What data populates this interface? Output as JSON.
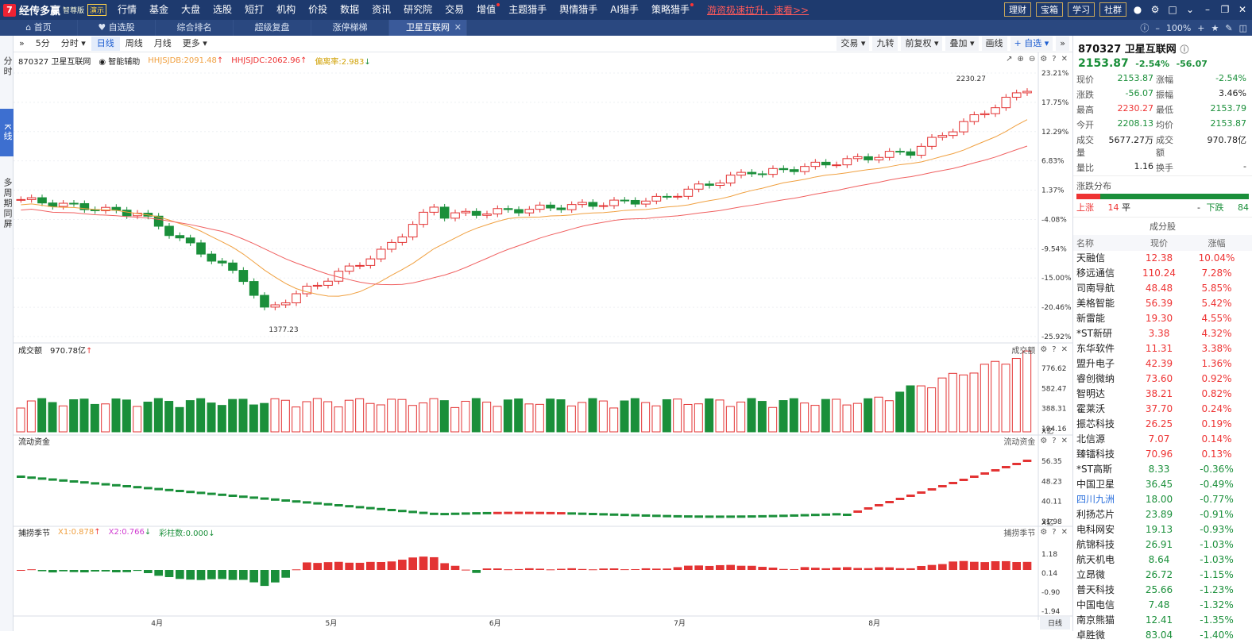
{
  "app": {
    "logo_mark": "7",
    "name": "经传多赢",
    "edition": "智尊版",
    "demo": "演示"
  },
  "menu": [
    {
      "label": "行情"
    },
    {
      "label": "基金"
    },
    {
      "label": "大盘"
    },
    {
      "label": "选股"
    },
    {
      "label": "短打"
    },
    {
      "label": "机构"
    },
    {
      "label": "价投"
    },
    {
      "label": "数据"
    },
    {
      "label": "资讯"
    },
    {
      "label": "研究院"
    },
    {
      "label": "交易"
    },
    {
      "label": "增值"
    },
    {
      "label": "主题猎手"
    },
    {
      "label": "舆情猎手"
    },
    {
      "label": "AI猎手"
    },
    {
      "label": "策略猎手"
    }
  ],
  "promo": "游资极速拉升，速看>>",
  "top_buttons": [
    "理财",
    "宝箱",
    "学习",
    "社群"
  ],
  "tabs": [
    {
      "label": "首页"
    },
    {
      "label": "自选股"
    },
    {
      "label": "综合排名"
    },
    {
      "label": "超级复盘"
    },
    {
      "label": "涨停梯梯"
    },
    {
      "label": "卫星互联网"
    }
  ],
  "tab_zoom": "100%",
  "left_nav": [
    "分时",
    "K线",
    "多周期同屏"
  ],
  "chart_toolbar": {
    "periods": [
      "5分",
      "分时",
      "日线",
      "周线",
      "月线",
      "更多"
    ],
    "right": [
      "交易",
      "九转",
      "前复权",
      "叠加",
      "画线",
      "自选"
    ]
  },
  "chart_legend": {
    "code_name": "870327 卫星互联网",
    "assist": "智能辅助",
    "hhjsjdb": "HHJSJDB:2091.48",
    "hhjsjdc": "HHJSJDC:2062.96",
    "deviation": "偏离率:2.983"
  },
  "price_axis": [
    "23.21%",
    "17.75%",
    "12.29%",
    "6.83%",
    "1.37%",
    "-4.08%",
    "-9.54%",
    "-15.00%",
    "-20.46%",
    "-25.92%"
  ],
  "high_label": "2230.27",
  "low_label": "1377.23",
  "volume": {
    "title": "成交额",
    "value": "970.78亿",
    "unit": "X亿",
    "axis": [
      "776.62",
      "582.47",
      "388.31",
      "194.16"
    ],
    "right_title": "成交额"
  },
  "flow": {
    "title": "流动资金",
    "unit": "X亿",
    "axis": [
      "56.35",
      "48.23",
      "40.11",
      "31.98"
    ],
    "right_title": "流动资金"
  },
  "season": {
    "title": "捕捞季节",
    "x1": "X1:0.878",
    "x2": "X2:0.766",
    "bars": "彩柱数:0.000",
    "axis": [
      "1.18",
      "0.14",
      "-0.90",
      "-1.94"
    ],
    "right_title": "捕捞季节"
  },
  "x_axis": [
    "4月",
    "5月",
    "6月",
    "7月",
    "8月"
  ],
  "period_tag": "日线",
  "quote": {
    "title": "870327 卫星互联网",
    "price": "2153.87",
    "chg_pct": "-2.54%",
    "chg": "-56.07",
    "rows": [
      {
        "k1": "现价",
        "v1": "2153.87",
        "c1": "g",
        "k2": "涨幅",
        "v2": "-2.54%",
        "c2": "g"
      },
      {
        "k1": "涨跌",
        "v1": "-56.07",
        "c1": "g",
        "k2": "振幅",
        "v2": "3.46%",
        "c2": "blk"
      },
      {
        "k1": "最高",
        "v1": "2230.27",
        "c1": "r",
        "k2": "最低",
        "v2": "2153.79",
        "c2": "g"
      },
      {
        "k1": "今开",
        "v1": "2208.13",
        "c1": "g",
        "k2": "均价",
        "v2": "2153.87",
        "c2": "g"
      },
      {
        "k1": "成交量",
        "v1": "5677.27万",
        "c1": "blk",
        "k2": "成交额",
        "v2": "970.78亿",
        "c2": "blk"
      },
      {
        "k1": "量比",
        "v1": "1.16",
        "c1": "blk",
        "k2": "换手",
        "v2": "-",
        "c2": "blk"
      }
    ]
  },
  "distribution": {
    "title": "涨跌分布",
    "up_label": "上涨",
    "up": "14",
    "flat_label": "平",
    "flat": "-",
    "down_label": "下跌",
    "down": "84"
  },
  "components": {
    "title": "成分股",
    "head": [
      "名称",
      "现价",
      "涨幅"
    ],
    "rows": [
      {
        "name": "天融信",
        "price": "12.38",
        "chg": "10.04%"
      },
      {
        "name": "移远通信",
        "price": "110.24",
        "chg": "7.28%"
      },
      {
        "name": "司南导航",
        "price": "48.48",
        "chg": "5.85%"
      },
      {
        "name": "美格智能",
        "price": "56.39",
        "chg": "5.42%"
      },
      {
        "name": "新雷能",
        "price": "19.30",
        "chg": "4.55%"
      },
      {
        "name": "*ST新研",
        "price": "3.38",
        "chg": "4.32%"
      },
      {
        "name": "东华软件",
        "price": "11.31",
        "chg": "3.38%"
      },
      {
        "name": "盟升电子",
        "price": "42.39",
        "chg": "1.36%"
      },
      {
        "name": "睿创微纳",
        "price": "73.60",
        "chg": "0.92%"
      },
      {
        "name": "智明达",
        "price": "38.21",
        "chg": "0.82%"
      },
      {
        "name": "霍莱沃",
        "price": "37.70",
        "chg": "0.24%"
      },
      {
        "name": "振芯科技",
        "price": "26.25",
        "chg": "0.19%"
      },
      {
        "name": "北信源",
        "price": "7.07",
        "chg": "0.14%"
      },
      {
        "name": "臻镭科技",
        "price": "70.96",
        "chg": "0.13%"
      },
      {
        "name": "*ST高斯",
        "price": "8.33",
        "chg": "-0.36%"
      },
      {
        "name": "中国卫星",
        "price": "36.45",
        "chg": "-0.49%"
      },
      {
        "name": "四川九洲",
        "price": "18.00",
        "chg": "-0.77%"
      },
      {
        "name": "利扬芯片",
        "price": "23.89",
        "chg": "-0.91%"
      },
      {
        "name": "电科网安",
        "price": "19.13",
        "chg": "-0.93%"
      },
      {
        "name": "航锦科技",
        "price": "26.91",
        "chg": "-1.03%"
      },
      {
        "name": "航天机电",
        "price": "8.64",
        "chg": "-1.03%"
      },
      {
        "name": "立昂微",
        "price": "26.72",
        "chg": "-1.15%"
      },
      {
        "name": "普天科技",
        "price": "25.66",
        "chg": "-1.23%"
      },
      {
        "name": "中国电信",
        "price": "7.48",
        "chg": "-1.32%"
      },
      {
        "name": "南京熊猫",
        "price": "12.41",
        "chg": "-1.35%"
      },
      {
        "name": "卓胜微",
        "price": "83.04",
        "chg": "-1.40%"
      }
    ]
  },
  "colors": {
    "up": "#e33333",
    "down": "#1a8f3a",
    "ma1": "#f0a040",
    "ma2": "#f06060",
    "nav": "#1e3a6e"
  }
}
